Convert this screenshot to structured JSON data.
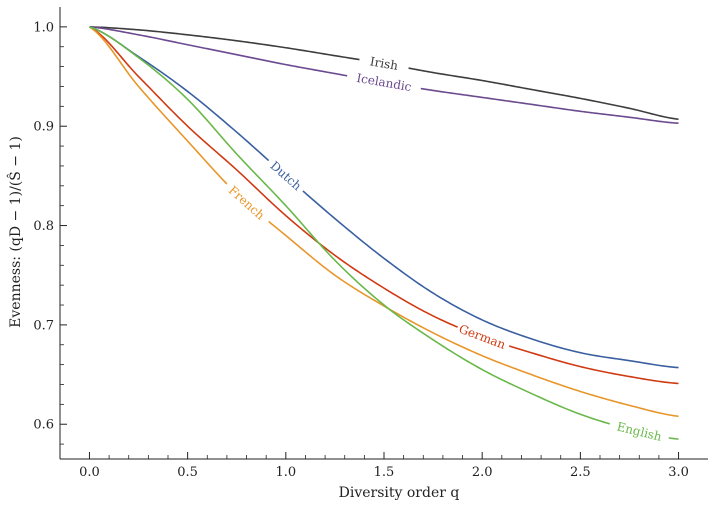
{
  "chart_data": {
    "type": "line",
    "title": "",
    "xlabel": "Diversity order q",
    "ylabel": "Evenness: (qD − 1)/(Ŝ − 1)",
    "xlim": [
      -0.15,
      3.15
    ],
    "ylim": [
      0.565,
      1.02
    ],
    "xticks": [
      0.0,
      0.5,
      1.0,
      1.5,
      2.0,
      2.5,
      3.0
    ],
    "xtick_labels": [
      "0.0",
      "0.5",
      "1.0",
      "1.5",
      "2.0",
      "2.5",
      "3.0"
    ],
    "yticks": [
      0.6,
      0.7,
      0.8,
      0.9,
      1.0
    ],
    "ytick_labels": [
      "0.6",
      "0.7",
      "0.8",
      "0.9",
      "1.0"
    ],
    "grid": false,
    "legend": "inline labels",
    "series": [
      {
        "name": "Irish",
        "color": "#3d3d3d",
        "x": [
          0,
          0.25,
          0.5,
          0.75,
          1.0,
          1.25,
          1.5,
          1.75,
          2.0,
          2.25,
          2.5,
          2.75,
          3.0
        ],
        "y": [
          1.0,
          0.997,
          0.992,
          0.986,
          0.979,
          0.971,
          0.963,
          0.954,
          0.946,
          0.937,
          0.928,
          0.918,
          0.907
        ],
        "label_x": 1.5
      },
      {
        "name": "Icelandic",
        "color": "#6b4a8f",
        "x": [
          0,
          0.25,
          0.5,
          0.75,
          1.0,
          1.25,
          1.5,
          1.75,
          2.0,
          2.25,
          2.5,
          2.75,
          3.0
        ],
        "y": [
          1.0,
          0.992,
          0.982,
          0.972,
          0.962,
          0.953,
          0.944,
          0.936,
          0.929,
          0.922,
          0.915,
          0.909,
          0.903
        ],
        "label_x": 1.5
      },
      {
        "name": "Dutch",
        "color": "#3a5fa0",
        "x": [
          0,
          0.25,
          0.5,
          0.75,
          1.0,
          1.25,
          1.5,
          1.75,
          2.0,
          2.25,
          2.5,
          2.75,
          3.0
        ],
        "y": [
          1.0,
          0.97,
          0.935,
          0.894,
          0.85,
          0.807,
          0.767,
          0.732,
          0.705,
          0.686,
          0.672,
          0.664,
          0.657
        ],
        "label_x": 1.0
      },
      {
        "name": "German",
        "color": "#d03a12",
        "x": [
          0,
          0.25,
          0.5,
          0.75,
          1.0,
          1.25,
          1.5,
          1.75,
          2.0,
          2.25,
          2.5,
          2.75,
          3.0
        ],
        "y": [
          1.0,
          0.95,
          0.9,
          0.856,
          0.81,
          0.77,
          0.737,
          0.709,
          0.688,
          0.672,
          0.658,
          0.648,
          0.641
        ],
        "label_x": 2.0
      },
      {
        "name": "French",
        "color": "#e8962a",
        "x": [
          0,
          0.25,
          0.5,
          0.75,
          1.0,
          1.25,
          1.5,
          1.75,
          2.0,
          2.25,
          2.5,
          2.75,
          3.0
        ],
        "y": [
          1.0,
          0.94,
          0.885,
          0.832,
          0.79,
          0.75,
          0.719,
          0.692,
          0.669,
          0.65,
          0.633,
          0.619,
          0.608
        ],
        "label_x": 0.8
      },
      {
        "name": "English",
        "color": "#6ab84a",
        "x": [
          0,
          0.25,
          0.5,
          0.75,
          1.0,
          1.25,
          1.5,
          1.75,
          2.0,
          2.25,
          2.5,
          2.75,
          3.0
        ],
        "y": [
          1.0,
          0.969,
          0.927,
          0.872,
          0.82,
          0.765,
          0.72,
          0.685,
          0.655,
          0.631,
          0.61,
          0.595,
          0.585
        ],
        "label_x": 2.8
      }
    ]
  }
}
